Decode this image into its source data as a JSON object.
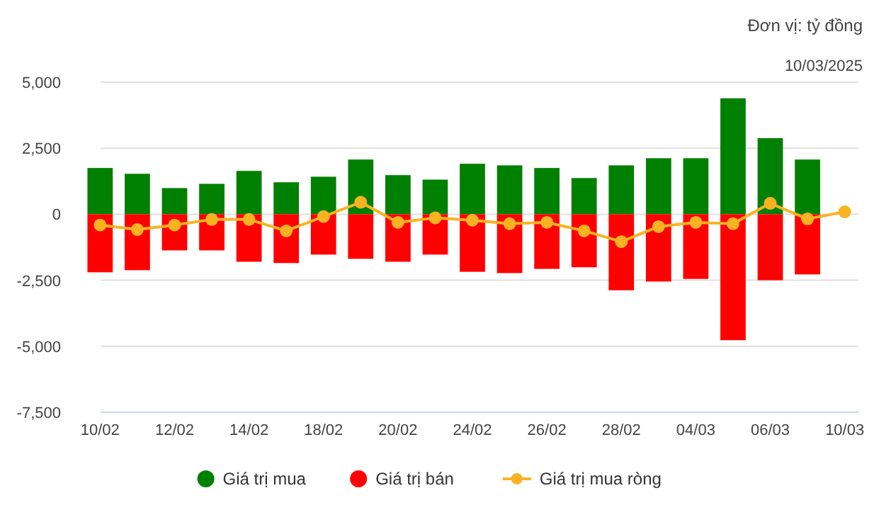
{
  "chart_data": {
    "type": "bar",
    "stacked": true,
    "annotations": [
      "Đơn vị: tỷ đồng",
      "10/03/2025"
    ],
    "categories": [
      "10/02",
      null,
      "12/02",
      null,
      "14/02",
      null,
      "18/02",
      null,
      "20/02",
      null,
      "24/02",
      null,
      "26/02",
      null,
      "28/02",
      null,
      "04/03",
      null,
      "06/03",
      null,
      "10/03"
    ],
    "series": [
      {
        "name": "Giá trị mua",
        "color": "#008000",
        "values": [
          1750,
          1530,
          990,
          1150,
          1640,
          1210,
          1420,
          2070,
          1480,
          1310,
          1910,
          1850,
          1750,
          1370,
          1850,
          2120,
          2120,
          4390,
          2880,
          2070,
          null
        ]
      },
      {
        "name": "Giá trị bán",
        "color": "#ff0000",
        "values": [
          -2200,
          -2120,
          -1370,
          -1370,
          -1800,
          -1850,
          -1530,
          -1690,
          -1800,
          -1530,
          -2180,
          -2230,
          -2070,
          -2010,
          -2880,
          -2550,
          -2450,
          -4770,
          -2500,
          -2280,
          null
        ]
      },
      {
        "name": "Giá trị mua ròng",
        "type": "line",
        "color": "#f7b322",
        "marker": "circle",
        "values": [
          -410,
          -580,
          -410,
          -200,
          -200,
          -630,
          -90,
          450,
          -310,
          -140,
          -230,
          -360,
          -310,
          -630,
          -1040,
          -470,
          -310,
          -360,
          410,
          -180,
          90
        ]
      }
    ],
    "ylim": [
      -7500,
      5000
    ],
    "yticks": [
      {
        "value": -7500,
        "label": "-7,500"
      },
      {
        "value": -5000,
        "label": "-5,000"
      },
      {
        "value": -2500,
        "label": "-2,500"
      },
      0,
      {
        "value": 2500,
        "label": "2,500"
      },
      {
        "value": 5000,
        "label": "5,000"
      }
    ],
    "grid": "y",
    "legend": "bottom"
  }
}
